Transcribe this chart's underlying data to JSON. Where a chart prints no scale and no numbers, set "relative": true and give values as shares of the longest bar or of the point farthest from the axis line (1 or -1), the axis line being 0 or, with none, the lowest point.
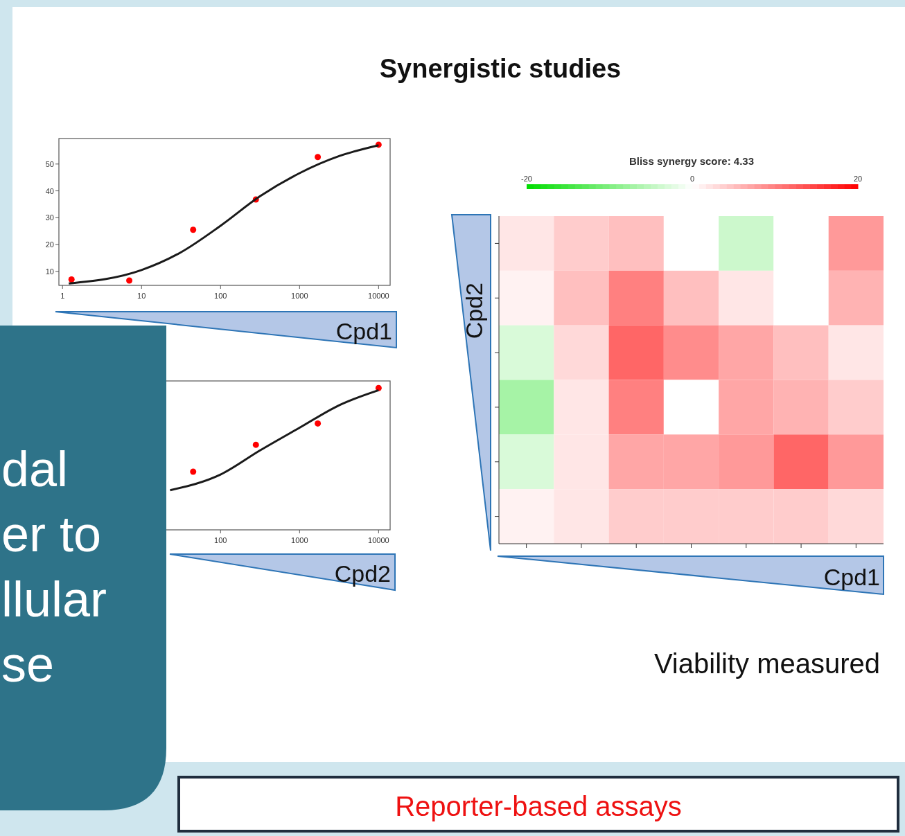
{
  "chart_data": [
    {
      "type": "scatter",
      "title": "Synergistic studies",
      "xlabel": "Cpd1",
      "log": "x",
      "xlim": [
        0.9,
        14000
      ],
      "ylim": [
        4.8,
        59.5
      ],
      "xticks": [
        1,
        10,
        100,
        1000,
        10000
      ],
      "yticks": [
        10,
        20,
        30,
        40,
        50
      ],
      "series": [
        {
          "type": "scatter",
          "marker": "circle",
          "color": "#ff0000",
          "x": [
            1.3,
            7,
            45,
            280,
            1700,
            10000
          ],
          "values": [
            7,
            6.6,
            25.5,
            36.8,
            52.6,
            57.2
          ]
        },
        {
          "type": "line",
          "color": "#1a1a1a",
          "x": [
            1.2,
            10,
            31,
            100,
            316,
            1000,
            3200,
            10000
          ],
          "values": [
            5.5,
            10.5,
            17,
            27,
            38,
            46.6,
            53,
            57
          ]
        }
      ]
    },
    {
      "type": "scatter",
      "xlabel": "Cpd2",
      "relative": true,
      "log": "x",
      "xlim": [
        0.9,
        14000
      ],
      "xticks": [
        100,
        1000,
        10000
      ],
      "series": [
        {
          "type": "scatter",
          "marker": "circle",
          "color": "#ff0000",
          "x": [
            45,
            280,
            1700,
            10000
          ],
          "values": [
            0.41,
            0.6,
            0.75,
            1
          ]
        },
        {
          "type": "line",
          "color": "#1a1a1a",
          "x": [
            23,
            100,
            316,
            1000,
            3200,
            10000
          ],
          "values": [
            0.28,
            0.39,
            0.56,
            0.72,
            0.88,
            0.985
          ]
        }
      ]
    },
    {
      "type": "heatmap",
      "xlabel": "Cpd1",
      "ylabel": "Cpd2",
      "clabel": "Bliss synergy score: 4.33",
      "clim": [
        -20,
        20
      ],
      "cticks": [
        -20,
        0,
        20
      ],
      "annotations": [
        "Viability measured"
      ],
      "categories": [
        null,
        null,
        null,
        null,
        null,
        null,
        null
      ],
      "y_categories": [
        null,
        null,
        null,
        null,
        null,
        null
      ],
      "cells": [
        [
          2,
          4,
          5,
          0,
          -4,
          0,
          8
        ],
        [
          1,
          5,
          10,
          5,
          2,
          0,
          6
        ],
        [
          -3,
          3,
          12,
          9,
          7,
          5,
          2
        ],
        [
          -7,
          2,
          10,
          0,
          7,
          6,
          4
        ],
        [
          -3,
          2,
          7,
          7,
          8,
          12,
          8
        ],
        [
          1,
          2,
          4,
          4,
          4,
          4,
          3
        ]
      ]
    },
    {
      "type": "other",
      "annotations": [
        "dal",
        "er to",
        "llular",
        "se",
        "Reporter-based assays"
      ]
    }
  ]
}
